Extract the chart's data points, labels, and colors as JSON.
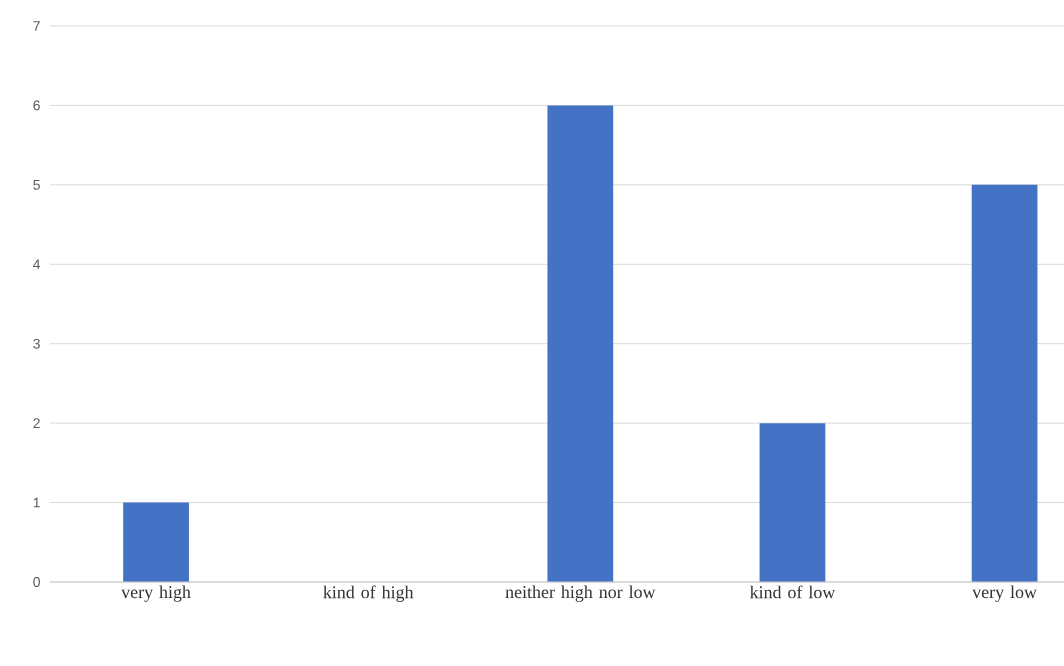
{
  "chart_data": {
    "type": "bar",
    "categories": [
      "very high",
      "kind of high",
      "neither high nor low",
      "kind of low",
      "very low"
    ],
    "values": [
      1,
      0,
      6,
      2,
      5
    ],
    "color": "#4472c4",
    "ylim": [
      0,
      7
    ],
    "yticks": [
      0,
      1,
      2,
      3,
      4,
      5,
      6,
      7
    ],
    "grid": "y"
  }
}
